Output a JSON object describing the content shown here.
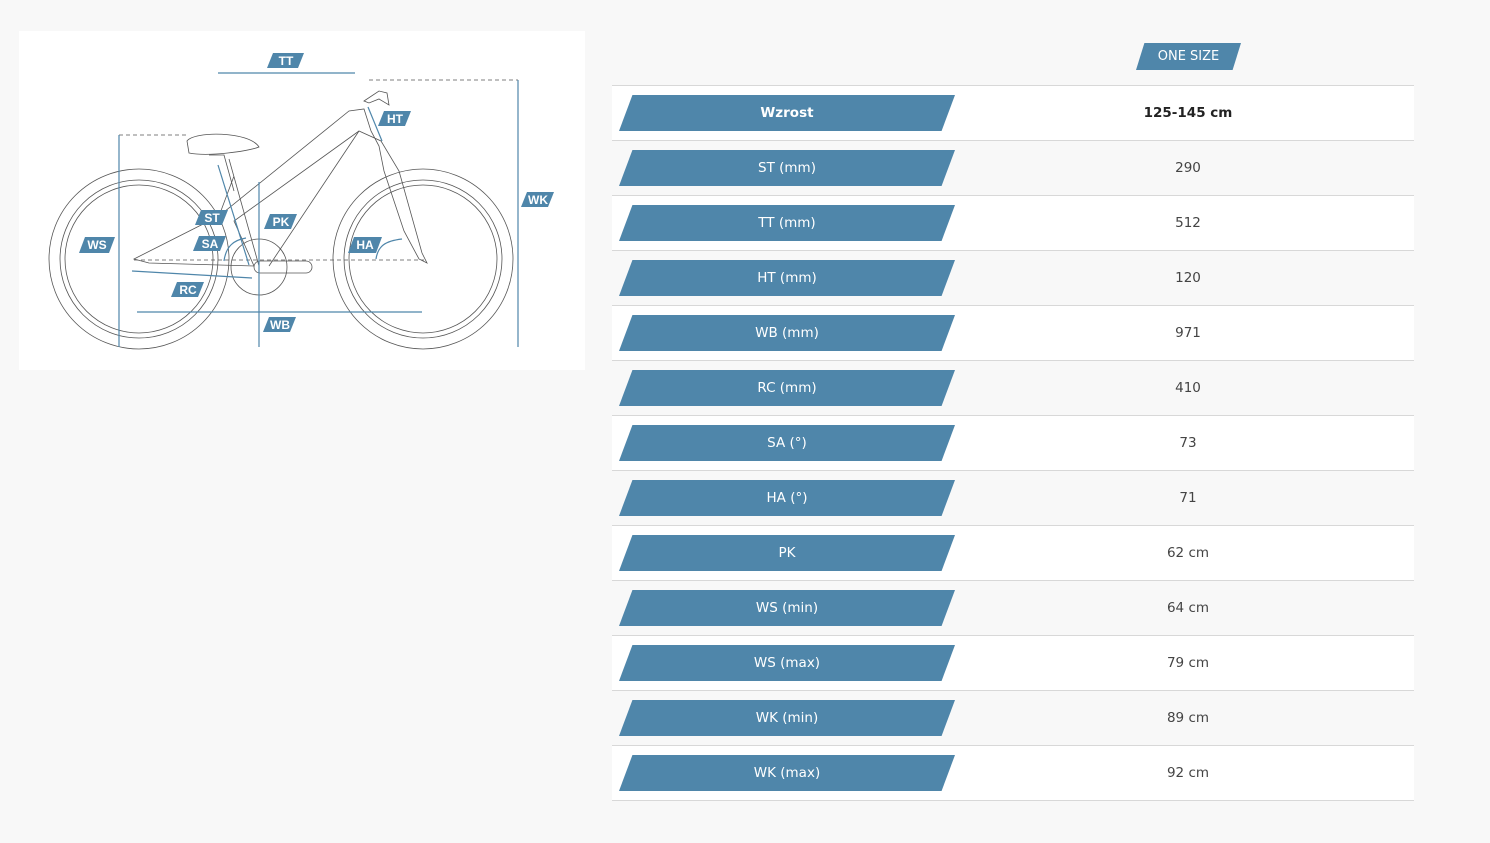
{
  "diagram": {
    "labels": {
      "tt": "TT",
      "ht": "HT",
      "wk": "WK",
      "st": "ST",
      "pk": "PK",
      "ws": "WS",
      "sa": "SA",
      "ha": "HA",
      "rc": "RC",
      "wb": "WB"
    }
  },
  "size_header": "ONE SIZE",
  "accent_color": "#4f86aa",
  "rows": [
    {
      "label": "Wzrost",
      "value": "125-145 cm"
    },
    {
      "label": "ST (mm)",
      "value": "290"
    },
    {
      "label": "TT (mm)",
      "value": "512"
    },
    {
      "label": "HT (mm)",
      "value": "120"
    },
    {
      "label": "WB (mm)",
      "value": "971"
    },
    {
      "label": "RC (mm)",
      "value": "410"
    },
    {
      "label": "SA (°)",
      "value": "73"
    },
    {
      "label": "HA (°)",
      "value": "71"
    },
    {
      "label": "PK",
      "value": "62 cm"
    },
    {
      "label": "WS (min)",
      "value": "64 cm"
    },
    {
      "label": "WS (max)",
      "value": "79 cm"
    },
    {
      "label": "WK (min)",
      "value": "89 cm"
    },
    {
      "label": "WK (max)",
      "value": "92 cm"
    }
  ]
}
